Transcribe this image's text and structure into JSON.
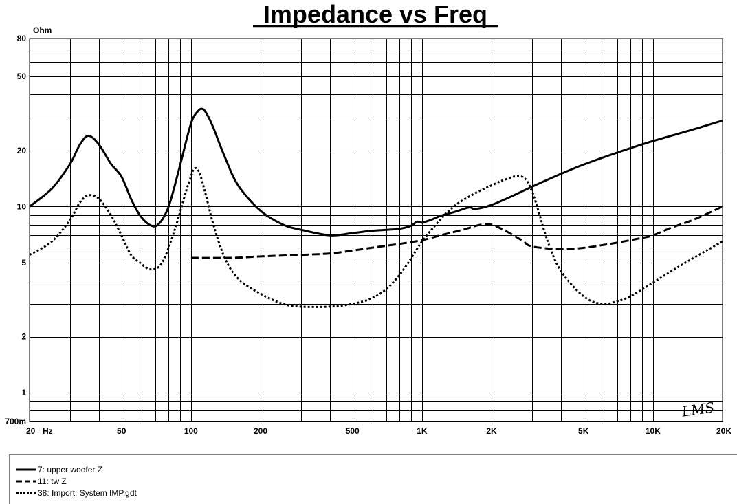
{
  "chart_data": {
    "type": "line",
    "title": "Impedance vs Freq",
    "ylabel": "Ohm",
    "xlabel": "Hz",
    "x_scale": "log",
    "y_scale": "log",
    "xlim": [
      20,
      20000
    ],
    "ylim": [
      0.7,
      80
    ],
    "grid": true,
    "x_ticks": [
      {
        "value": 20,
        "label": "20"
      },
      {
        "value": 50,
        "label": "50"
      },
      {
        "value": 100,
        "label": "100"
      },
      {
        "value": 200,
        "label": "200"
      },
      {
        "value": 500,
        "label": "500"
      },
      {
        "value": 1000,
        "label": "1K"
      },
      {
        "value": 2000,
        "label": "2K"
      },
      {
        "value": 5000,
        "label": "5K"
      },
      {
        "value": 10000,
        "label": "10K"
      },
      {
        "value": 20000,
        "label": "20K"
      }
    ],
    "y_ticks": [
      {
        "value": 80,
        "label": "80"
      },
      {
        "value": 50,
        "label": "50"
      },
      {
        "value": 20,
        "label": "20"
      },
      {
        "value": 10,
        "label": "10"
      },
      {
        "value": 5,
        "label": "5"
      },
      {
        "value": 2,
        "label": "2"
      },
      {
        "value": 1,
        "label": "1"
      },
      {
        "value": 0.7,
        "label": "700m"
      }
    ],
    "watermark": "LMS",
    "series": [
      {
        "name": "7: upper woofer Z",
        "style": "solid",
        "x": [
          20,
          25,
          30,
          33,
          36,
          40,
          45,
          50,
          55,
          60,
          66,
          72,
          80,
          90,
          100,
          107,
          112,
          117,
          125,
          140,
          160,
          200,
          250,
          300,
          400,
          500,
          600,
          700,
          800,
          900,
          950,
          1000,
          1100,
          1200,
          1400,
          1600,
          1700,
          2000,
          2500,
          3000,
          4000,
          5000,
          7000,
          10000,
          15000,
          20000
        ],
        "y": [
          10.0,
          12.5,
          17.0,
          21.5,
          24.0,
          21.5,
          17.0,
          14.5,
          11.0,
          9.0,
          8.0,
          8.0,
          10.0,
          17.0,
          28.0,
          32.5,
          33.5,
          31.5,
          26.5,
          18.5,
          13.0,
          9.5,
          8.0,
          7.5,
          7.0,
          7.2,
          7.4,
          7.5,
          7.6,
          7.9,
          8.3,
          8.2,
          8.5,
          8.9,
          9.4,
          9.9,
          9.7,
          10.2,
          11.5,
          12.8,
          15.0,
          16.8,
          19.5,
          22.5,
          26.0,
          29.0
        ]
      },
      {
        "name": "11: tw Z",
        "style": "dashed",
        "x": [
          100,
          150,
          200,
          300,
          400,
          500,
          600,
          800,
          1000,
          1200,
          1500,
          1800,
          2000,
          2300,
          2700,
          3000,
          4000,
          5000,
          6000,
          7000,
          9000,
          10000,
          12000,
          15000,
          20000
        ],
        "y": [
          5.3,
          5.3,
          5.4,
          5.5,
          5.6,
          5.8,
          6.0,
          6.3,
          6.6,
          7.0,
          7.5,
          8.0,
          8.0,
          7.4,
          6.6,
          6.1,
          5.9,
          6.0,
          6.2,
          6.4,
          6.8,
          7.0,
          7.7,
          8.5,
          10.0
        ]
      },
      {
        "name": "38: Import: System IMP.gdt",
        "style": "dotted",
        "x": [
          20,
          25,
          30,
          33,
          36,
          40,
          45,
          50,
          55,
          60,
          67,
          75,
          85,
          95,
          100,
          103,
          108,
          115,
          125,
          140,
          160,
          200,
          250,
          300,
          400,
          500,
          600,
          700,
          800,
          900,
          1000,
          1200,
          1400,
          1700,
          2000,
          2300,
          2700,
          3000,
          3500,
          4000,
          5000,
          6000,
          7000,
          8000,
          10000,
          12000,
          15000,
          20000
        ],
        "y": [
          5.5,
          6.5,
          8.5,
          10.5,
          11.5,
          11.0,
          9.0,
          7.0,
          5.5,
          5.0,
          4.6,
          5.0,
          7.5,
          12.0,
          14.5,
          16.0,
          15.5,
          12.0,
          8.0,
          5.3,
          4.1,
          3.4,
          3.0,
          2.9,
          2.9,
          3.0,
          3.2,
          3.6,
          4.3,
          5.3,
          6.5,
          8.5,
          10.2,
          11.8,
          13.0,
          14.0,
          14.5,
          12.0,
          6.5,
          4.5,
          3.3,
          3.0,
          3.1,
          3.3,
          3.9,
          4.5,
          5.3,
          6.5
        ]
      }
    ]
  }
}
